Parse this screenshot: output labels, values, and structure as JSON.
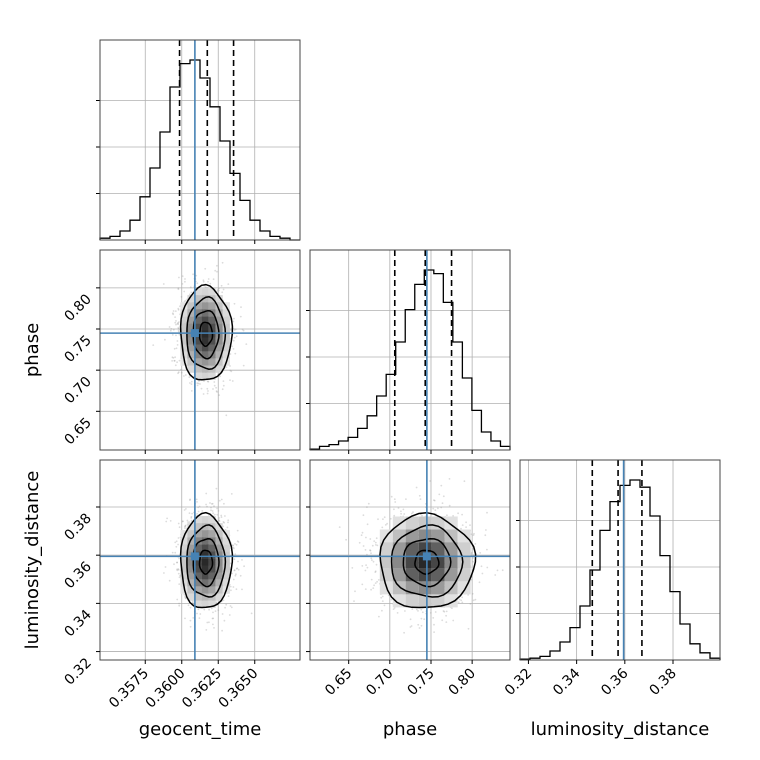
{
  "colors": {
    "truth": "#4682b4",
    "hist": "#000000",
    "grid": "#b0b0b0",
    "scatter": "#9a9a9a"
  },
  "chart_data": {
    "type": "corner",
    "parameters": [
      "geocent_time",
      "phase",
      "luminosity_distance"
    ],
    "axis_labels": [
      "geocent_time",
      "phase",
      "luminosity_distance"
    ],
    "ranges": [
      [
        0.3544,
        0.3681
      ],
      [
        0.603,
        0.846
      ],
      [
        0.3165,
        0.3995
      ]
    ],
    "ticks": [
      [
        "0.3575",
        "0.3600",
        "0.3625",
        "0.3650"
      ],
      [
        "0.65",
        "0.70",
        "0.75",
        "0.80"
      ],
      [
        "0.32",
        "0.34",
        "0.36",
        "0.38"
      ]
    ],
    "truths": [
      0.3609,
      0.745,
      0.3595
    ],
    "quantile_lines": [
      [
        0.35985,
        0.36175,
        0.36355
      ],
      [
        0.706,
        0.743,
        0.775
      ],
      [
        0.3465,
        0.3572,
        0.3671
      ]
    ],
    "histograms": [
      {
        "param": "geocent_time",
        "counts": [
          0.01,
          0.02,
          0.05,
          0.11,
          0.24,
          0.4,
          0.6,
          0.85,
          0.98,
          1.0,
          0.9,
          0.74,
          0.55,
          0.37,
          0.22,
          0.11,
          0.05,
          0.02,
          0.01,
          0.0
        ]
      },
      {
        "param": "phase",
        "counts": [
          0.005,
          0.02,
          0.03,
          0.05,
          0.07,
          0.12,
          0.19,
          0.3,
          0.42,
          0.6,
          0.78,
          0.92,
          1.0,
          0.98,
          0.82,
          0.6,
          0.4,
          0.22,
          0.1,
          0.05,
          0.02
        ]
      },
      {
        "param": "luminosity_distance",
        "counts": [
          0.005,
          0.01,
          0.02,
          0.05,
          0.1,
          0.18,
          0.3,
          0.5,
          0.72,
          0.88,
          0.97,
          1.0,
          0.96,
          0.8,
          0.58,
          0.38,
          0.2,
          0.09,
          0.04,
          0.01
        ]
      }
    ],
    "scatter_2d": [
      {
        "x": "geocent_time",
        "y": "phase",
        "center": [
          0.3616,
          0.744
        ],
        "sigma": [
          0.00088,
          0.0288
        ]
      },
      {
        "x": "geocent_time",
        "y": "luminosity_distance",
        "center": [
          0.3616,
          0.3572
        ],
        "sigma": [
          0.00088,
          0.0098
        ]
      },
      {
        "x": "phase",
        "y": "luminosity_distance",
        "center": [
          0.743,
          0.3572
        ],
        "sigma": [
          0.0288,
          0.0098
        ]
      }
    ],
    "grid": true
  }
}
